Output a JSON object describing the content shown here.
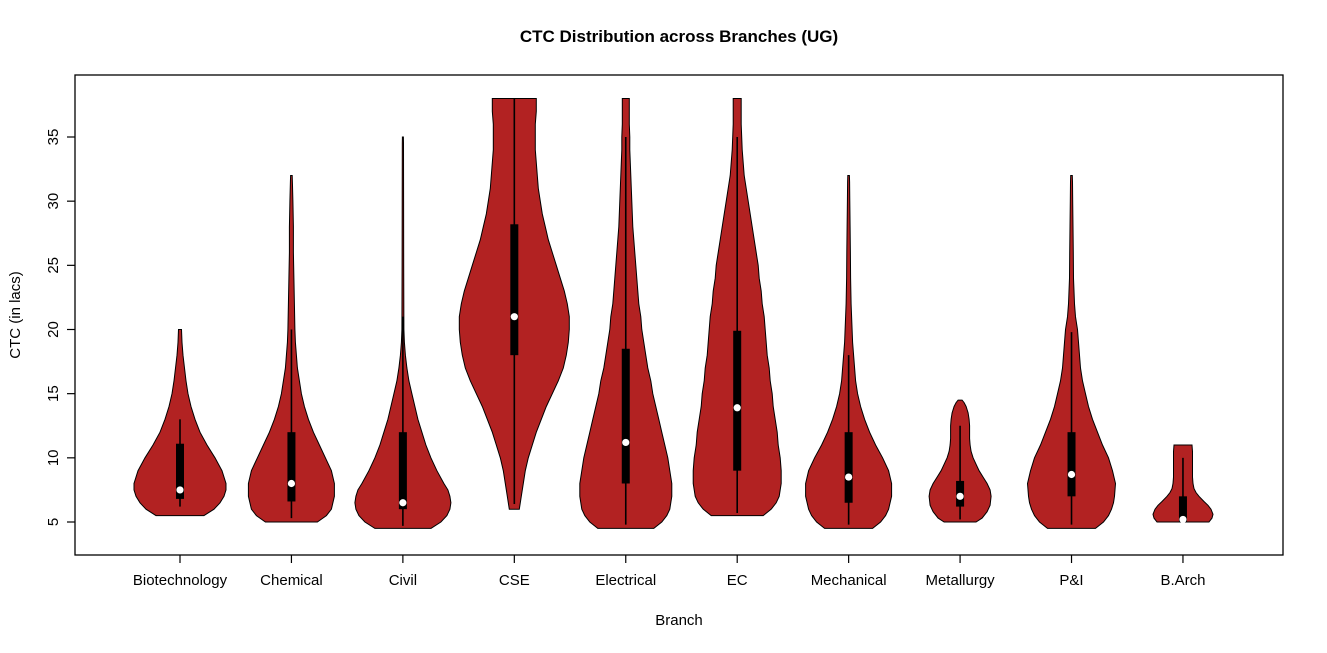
{
  "title": "CTC Distribution across Branches (UG)",
  "chart_data": {
    "type": "violin",
    "title": "CTC Distribution across Branches (UG)",
    "xlabel": "Branch",
    "ylabel": "CTC (in lacs)",
    "ylim": [
      4,
      39
    ],
    "yticks": [
      5,
      10,
      15,
      20,
      25,
      30,
      35
    ],
    "grid": false,
    "fill_color": "#b22222",
    "outline_color": "#000000",
    "median_dot_color": "#ffffff",
    "categories": [
      "Biotechnology",
      "Chemical",
      "Civil",
      "CSE",
      "Electrical",
      "EC",
      "Mechanical",
      "Metallurgy",
      "P&I",
      "B.Arch"
    ],
    "violins": [
      {
        "branch": "Biotechnology",
        "min": 5.5,
        "max": 20,
        "q1": 6.8,
        "median": 7.5,
        "q3": 11.1,
        "whisker_low": 6.2,
        "whisker_high": 13,
        "profile": [
          [
            5.5,
            24
          ],
          [
            6,
            34
          ],
          [
            6.5,
            40
          ],
          [
            7,
            44
          ],
          [
            7.5,
            46
          ],
          [
            8,
            46
          ],
          [
            9,
            42
          ],
          [
            10,
            35
          ],
          [
            11,
            27
          ],
          [
            12,
            20
          ],
          [
            13,
            15
          ],
          [
            14,
            11
          ],
          [
            15,
            8
          ],
          [
            16,
            6
          ],
          [
            17,
            4.5
          ],
          [
            18,
            3
          ],
          [
            19,
            2
          ],
          [
            20,
            1.5
          ]
        ]
      },
      {
        "branch": "Chemical",
        "min": 5,
        "max": 32,
        "q1": 6.6,
        "median": 8,
        "q3": 12,
        "whisker_low": 5.3,
        "whisker_high": 20,
        "profile": [
          [
            5,
            26
          ],
          [
            5.5,
            35
          ],
          [
            6,
            40
          ],
          [
            7,
            43
          ],
          [
            8,
            43
          ],
          [
            9,
            40
          ],
          [
            10,
            34
          ],
          [
            11,
            28
          ],
          [
            12,
            22
          ],
          [
            13,
            17
          ],
          [
            14,
            13
          ],
          [
            15,
            10
          ],
          [
            16,
            8
          ],
          [
            17,
            6
          ],
          [
            18,
            5
          ],
          [
            19,
            4
          ],
          [
            20,
            3.5
          ],
          [
            22,
            3
          ],
          [
            24,
            2.5
          ],
          [
            26,
            2
          ],
          [
            28,
            2
          ],
          [
            30,
            1.5
          ],
          [
            31.5,
            1
          ],
          [
            32,
            0.8
          ]
        ]
      },
      {
        "branch": "Civil",
        "min": 4.5,
        "max": 35,
        "q1": 6,
        "median": 6.5,
        "q3": 12,
        "whisker_low": 4.7,
        "whisker_high": 21,
        "profile": [
          [
            4.5,
            28
          ],
          [
            5,
            38
          ],
          [
            5.5,
            44
          ],
          [
            6,
            47
          ],
          [
            6.5,
            48
          ],
          [
            7,
            47
          ],
          [
            7.5,
            45
          ],
          [
            8,
            41
          ],
          [
            9,
            34
          ],
          [
            10,
            28
          ],
          [
            11,
            23
          ],
          [
            12,
            19
          ],
          [
            13,
            15
          ],
          [
            14,
            12
          ],
          [
            15,
            9
          ],
          [
            16,
            6
          ],
          [
            17,
            4
          ],
          [
            18,
            2.5
          ],
          [
            19,
            1.5
          ],
          [
            20,
            1
          ],
          [
            25,
            0.8
          ],
          [
            30,
            0.7
          ],
          [
            34.5,
            0.6
          ],
          [
            35,
            0.5
          ]
        ]
      },
      {
        "branch": "CSE",
        "min": 6,
        "max": 38,
        "q1": 18,
        "median": 21,
        "q3": 28.2,
        "whisker_low": 6.4,
        "whisker_high": 38,
        "profile": [
          [
            6,
            5
          ],
          [
            6.5,
            6
          ],
          [
            7,
            7
          ],
          [
            8,
            9
          ],
          [
            9,
            11
          ],
          [
            10,
            14
          ],
          [
            11,
            18
          ],
          [
            12,
            22
          ],
          [
            13,
            27
          ],
          [
            14,
            32
          ],
          [
            15,
            38
          ],
          [
            16,
            44
          ],
          [
            17,
            49
          ],
          [
            18,
            52
          ],
          [
            19,
            54
          ],
          [
            20,
            55
          ],
          [
            21,
            55
          ],
          [
            22,
            53
          ],
          [
            23,
            50
          ],
          [
            24,
            46
          ],
          [
            25,
            42
          ],
          [
            26,
            38
          ],
          [
            27,
            34
          ],
          [
            28,
            31
          ],
          [
            29,
            28
          ],
          [
            30,
            26
          ],
          [
            31,
            24
          ],
          [
            32,
            23
          ],
          [
            33,
            22
          ],
          [
            34,
            21
          ],
          [
            35,
            21
          ],
          [
            36,
            21
          ],
          [
            37,
            22
          ],
          [
            38,
            22
          ]
        ]
      },
      {
        "branch": "Electrical",
        "min": 4.5,
        "max": 38,
        "q1": 8,
        "median": 11.2,
        "q3": 18.5,
        "whisker_low": 4.8,
        "whisker_high": 35,
        "profile": [
          [
            4.5,
            28
          ],
          [
            5,
            36
          ],
          [
            5.5,
            41
          ],
          [
            6,
            44
          ],
          [
            7,
            46
          ],
          [
            8,
            46
          ],
          [
            9,
            44
          ],
          [
            10,
            42
          ],
          [
            11,
            39
          ],
          [
            12,
            36
          ],
          [
            13,
            33
          ],
          [
            14,
            30
          ],
          [
            15,
            27
          ],
          [
            16,
            25
          ],
          [
            17,
            22
          ],
          [
            18,
            20
          ],
          [
            19,
            18
          ],
          [
            20,
            16
          ],
          [
            21,
            15
          ],
          [
            22,
            13
          ],
          [
            23,
            12
          ],
          [
            24,
            11
          ],
          [
            25,
            10
          ],
          [
            26,
            9
          ],
          [
            27,
            8
          ],
          [
            28,
            7
          ],
          [
            29,
            6.5
          ],
          [
            30,
            6
          ],
          [
            31,
            5.5
          ],
          [
            32,
            5
          ],
          [
            33,
            4.5
          ],
          [
            34,
            4
          ],
          [
            35,
            4
          ],
          [
            36,
            3.5
          ],
          [
            37,
            3.5
          ],
          [
            38,
            3.5
          ]
        ]
      },
      {
        "branch": "EC",
        "min": 5.5,
        "max": 38,
        "q1": 9,
        "median": 13.9,
        "q3": 19.9,
        "whisker_low": 5.7,
        "whisker_high": 35,
        "profile": [
          [
            5.5,
            26
          ],
          [
            6,
            34
          ],
          [
            6.5,
            39
          ],
          [
            7,
            42
          ],
          [
            8,
            44
          ],
          [
            9,
            44
          ],
          [
            10,
            43
          ],
          [
            11,
            41
          ],
          [
            12,
            40
          ],
          [
            13,
            38
          ],
          [
            14,
            36
          ],
          [
            15,
            35
          ],
          [
            16,
            33
          ],
          [
            17,
            32
          ],
          [
            18,
            30
          ],
          [
            19,
            29
          ],
          [
            20,
            28
          ],
          [
            21,
            27
          ],
          [
            22,
            25
          ],
          [
            23,
            24
          ],
          [
            24,
            22
          ],
          [
            25,
            21
          ],
          [
            26,
            19
          ],
          [
            27,
            17
          ],
          [
            28,
            15
          ],
          [
            29,
            13
          ],
          [
            30,
            11
          ],
          [
            31,
            9
          ],
          [
            32,
            7
          ],
          [
            33,
            6
          ],
          [
            34,
            5
          ],
          [
            35,
            4.5
          ],
          [
            36,
            4
          ],
          [
            37,
            4
          ],
          [
            38,
            4
          ]
        ]
      },
      {
        "branch": "Mechanical",
        "min": 4.5,
        "max": 32,
        "q1": 6.5,
        "median": 8.5,
        "q3": 12,
        "whisker_low": 4.8,
        "whisker_high": 18,
        "profile": [
          [
            4.5,
            24
          ],
          [
            5,
            32
          ],
          [
            5.5,
            37
          ],
          [
            6,
            40
          ],
          [
            7,
            43
          ],
          [
            8,
            43
          ],
          [
            9,
            40
          ],
          [
            10,
            34
          ],
          [
            11,
            27
          ],
          [
            12,
            21
          ],
          [
            13,
            16
          ],
          [
            14,
            12
          ],
          [
            15,
            9
          ],
          [
            16,
            7
          ],
          [
            17,
            6
          ],
          [
            18,
            5
          ],
          [
            19,
            4
          ],
          [
            20,
            3.5
          ],
          [
            21,
            3
          ],
          [
            22,
            2.5
          ],
          [
            24,
            2
          ],
          [
            26,
            1.8
          ],
          [
            28,
            1.5
          ],
          [
            30,
            1.2
          ],
          [
            31.5,
            1
          ],
          [
            32,
            0.8
          ]
        ]
      },
      {
        "branch": "Metallurgy",
        "min": 5,
        "max": 14.5,
        "q1": 6.2,
        "median": 7,
        "q3": 8.2,
        "whisker_low": 5.2,
        "whisker_high": 12.5,
        "profile": [
          [
            5,
            16
          ],
          [
            5.3,
            22
          ],
          [
            5.8,
            27
          ],
          [
            6.3,
            30
          ],
          [
            7,
            31
          ],
          [
            7.5,
            30
          ],
          [
            8,
            27
          ],
          [
            8.5,
            23
          ],
          [
            9,
            19
          ],
          [
            9.5,
            16
          ],
          [
            10,
            13
          ],
          [
            10.5,
            11
          ],
          [
            11,
            10
          ],
          [
            11.5,
            9.5
          ],
          [
            12,
            9.5
          ],
          [
            12.5,
            9.5
          ],
          [
            13,
            9
          ],
          [
            13.5,
            8
          ],
          [
            14,
            6
          ],
          [
            14.3,
            4
          ],
          [
            14.5,
            2
          ]
        ]
      },
      {
        "branch": "P&I",
        "min": 4.5,
        "max": 32,
        "q1": 7,
        "median": 8.7,
        "q3": 12,
        "whisker_low": 4.8,
        "whisker_high": 19.8,
        "profile": [
          [
            4.5,
            24
          ],
          [
            5,
            32
          ],
          [
            5.5,
            37
          ],
          [
            6,
            40
          ],
          [
            6.5,
            42
          ],
          [
            7,
            43
          ],
          [
            8,
            44
          ],
          [
            9,
            41
          ],
          [
            10,
            37
          ],
          [
            11,
            31
          ],
          [
            12,
            26
          ],
          [
            13,
            21
          ],
          [
            14,
            17
          ],
          [
            15,
            14
          ],
          [
            16,
            11
          ],
          [
            17,
            9
          ],
          [
            18,
            8
          ],
          [
            19,
            7
          ],
          [
            20,
            6
          ],
          [
            21,
            4
          ],
          [
            22,
            3
          ],
          [
            23,
            2.5
          ],
          [
            24,
            2
          ],
          [
            26,
            1.8
          ],
          [
            28,
            1.5
          ],
          [
            30,
            1.2
          ],
          [
            31.5,
            1
          ],
          [
            32,
            0.8
          ]
        ]
      },
      {
        "branch": "B.Arch",
        "min": 5,
        "max": 11,
        "q1": 5,
        "median": 5.2,
        "q3": 7,
        "whisker_low": 5,
        "whisker_high": 10,
        "profile": [
          [
            5,
            26
          ],
          [
            5.3,
            29
          ],
          [
            5.6,
            30
          ],
          [
            6,
            28
          ],
          [
            6.3,
            25
          ],
          [
            6.6,
            21
          ],
          [
            7,
            16
          ],
          [
            7.3,
            13
          ],
          [
            7.6,
            11
          ],
          [
            8,
            10
          ],
          [
            8.5,
            9.5
          ],
          [
            9,
            9.5
          ],
          [
            9.5,
            9.5
          ],
          [
            10,
            9.5
          ],
          [
            10.5,
            9.5
          ],
          [
            11,
            9
          ]
        ]
      }
    ]
  }
}
